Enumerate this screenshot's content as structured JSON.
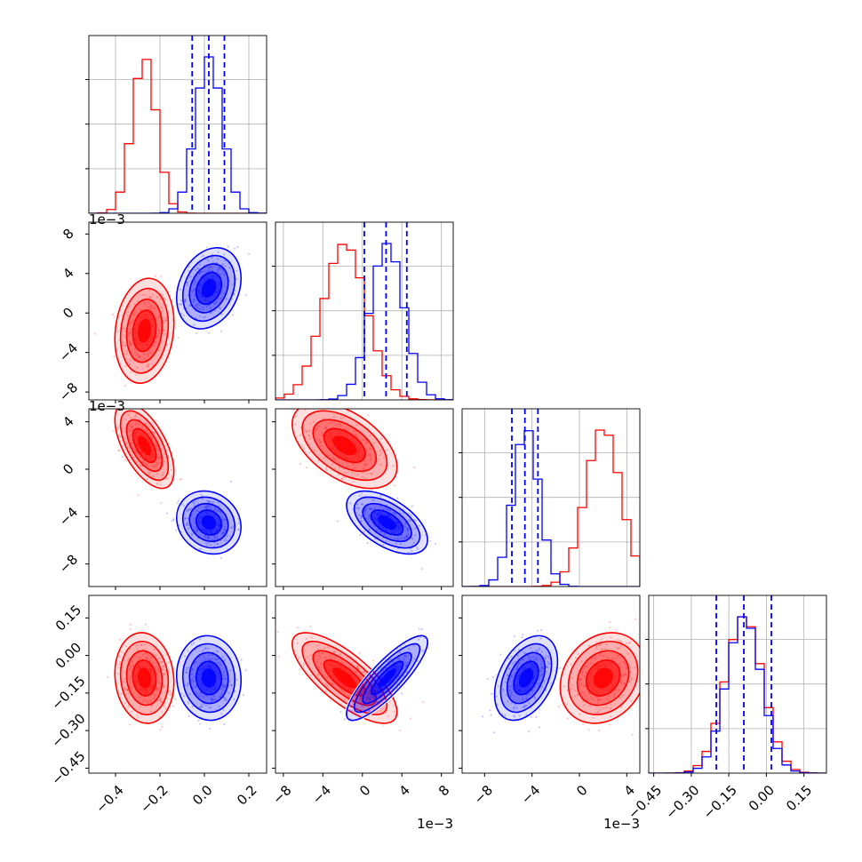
{
  "chart_data": {
    "type": "corner",
    "colors": {
      "red": "#ff0000",
      "blue": "#0000ff",
      "grid": "#b0b0b0"
    },
    "parameters": [
      {
        "range": [
          -0.52,
          0.28
        ],
        "ticks": [
          -0.4,
          -0.2,
          0.0,
          0.2
        ],
        "tick_labels": [
          "−0.4",
          "−0.2",
          "0.0",
          "0.2"
        ],
        "offset_label": ""
      },
      {
        "range": [
          -0.0088,
          0.0092
        ],
        "ticks": [
          -0.008,
          -0.004,
          0.0,
          0.004,
          0.008
        ],
        "tick_labels": [
          "−8",
          "−4",
          "0",
          "4",
          "8"
        ],
        "offset_label": "1e−3"
      },
      {
        "range": [
          -0.0099,
          0.0051
        ],
        "ticks": [
          -0.008,
          -0.004,
          0.0,
          0.004
        ],
        "tick_labels": [
          "−8",
          "−4",
          "0",
          "4"
        ],
        "offset_label": "1e−3"
      },
      {
        "range": [
          -0.47,
          0.24
        ],
        "ticks": [
          -0.45,
          -0.3,
          -0.15,
          0.0,
          0.15
        ],
        "tick_labels": [
          "−0.45",
          "−0.30",
          "−0.15",
          "0.00",
          "0.15"
        ],
        "offset_label": ""
      }
    ],
    "series": [
      {
        "color": "red",
        "means": [
          -0.27,
          -0.0018,
          0.002,
          -0.09
        ],
        "sigmas": [
          0.055,
          0.0022,
          0.0015,
          0.075
        ],
        "correlations": {
          "0-1": 0.15,
          "0-2": -0.6,
          "0-3": -0.1,
          "1-2": -0.5,
          "1-3": -0.75,
          "2-3": 0.2
        }
      },
      {
        "color": "blue",
        "means": [
          0.02,
          0.0025,
          -0.0045,
          -0.09
        ],
        "sigmas": [
          0.06,
          0.0017,
          0.0011,
          0.07
        ],
        "correlations": {
          "0-1": 0.25,
          "0-2": -0.15,
          "0-3": -0.05,
          "1-2": -0.55,
          "1-3": 0.85,
          "2-3": 0.4
        }
      }
    ],
    "quantile_lines": [
      [
        -0.055,
        0.02,
        0.09
      ],
      [
        0.0002,
        0.0024,
        0.0045
      ],
      [
        -0.0057,
        -0.0046,
        -0.0035
      ],
      [
        -0.2,
        -0.09,
        0.02
      ]
    ],
    "grid": true
  }
}
